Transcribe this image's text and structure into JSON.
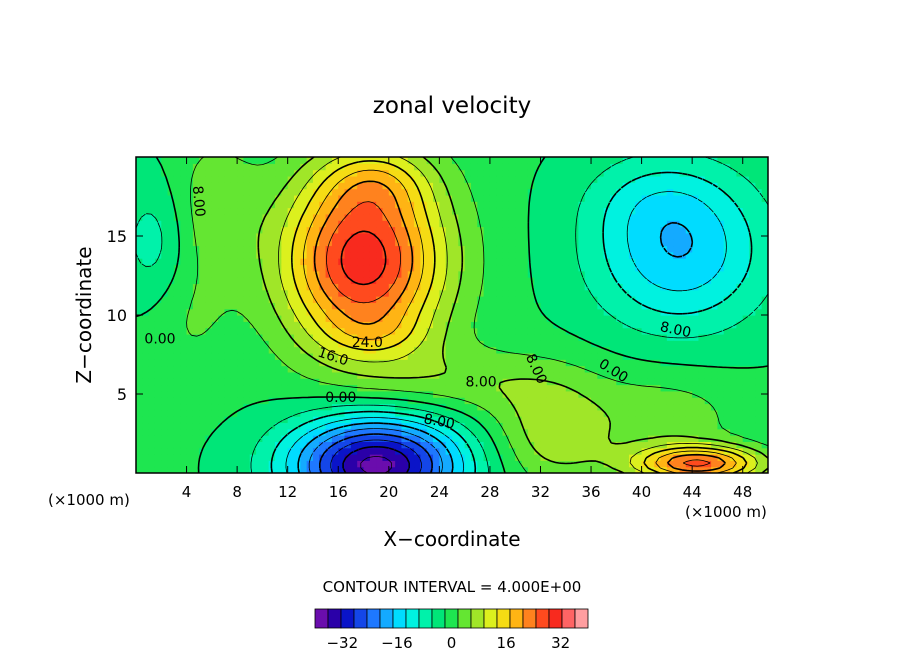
{
  "chart_data": {
    "type": "heatmap",
    "title": "zonal velocity",
    "xlabel": "X−coordinate",
    "ylabel": "Z−coordinate",
    "x_unit": "(×1000 m)",
    "y_unit": "(×1000 m)",
    "xlim": [
      0,
      50
    ],
    "ylim": [
      0,
      20
    ],
    "x_ticks": [
      4,
      8,
      12,
      16,
      20,
      24,
      28,
      32,
      36,
      40,
      44,
      48
    ],
    "y_ticks": [
      5,
      10,
      15
    ],
    "contour_interval_text": "CONTOUR INTERVAL = 4.000E+00",
    "contour_interval": 4,
    "color_levels": [
      -40,
      -36,
      -32,
      -28,
      -24,
      -20,
      -16,
      -12,
      -8,
      -4,
      0,
      4,
      8,
      12,
      16,
      20,
      24,
      28,
      32,
      36,
      40
    ],
    "colorbar_ticks": [
      -32,
      -16,
      0,
      16,
      32
    ],
    "contour_labels": [
      {
        "text": "8.00",
        "x": 5.0,
        "z": 17.2,
        "rotate": 85
      },
      {
        "text": "0.00",
        "x": 1.9,
        "z": 8.5,
        "rotate": 0
      },
      {
        "text": "24.0",
        "x": 18.3,
        "z": 8.3,
        "rotate": 0
      },
      {
        "text": "16.0",
        "x": 15.6,
        "z": 7.4,
        "rotate": 18
      },
      {
        "text": "8.00",
        "x": 27.3,
        "z": 5.8,
        "rotate": 0
      },
      {
        "text": "0.00",
        "x": 16.2,
        "z": 4.8,
        "rotate": 0
      },
      {
        "text": "8.00",
        "x": 24.0,
        "z": 3.3,
        "rotate": 10
      },
      {
        "text": "8.00",
        "x": 31.7,
        "z": 6.6,
        "rotate": 65
      },
      {
        "text": "0.00",
        "x": 37.8,
        "z": 6.5,
        "rotate": 32
      },
      {
        "text": "8.00",
        "x": 42.7,
        "z": 9.1,
        "rotate": 12
      }
    ],
    "field_features": [
      {
        "name": "upper jet",
        "x": 18,
        "z": 13.5,
        "peak": 34,
        "sx": 4.5,
        "sz": 4.0
      },
      {
        "name": "jet top",
        "x": 19,
        "z": 18.5,
        "peak": 8,
        "sx": 3.0,
        "sz": 1.5
      },
      {
        "name": "jet lower lobe",
        "x": 19,
        "z": 8.8,
        "peak": 4,
        "sx": 3.0,
        "sz": 1.0
      },
      {
        "name": "western ridge",
        "x": 6,
        "z": 17.0,
        "peak": 6,
        "sx": 2.5,
        "sz": 3.0
      },
      {
        "name": "surface core",
        "x": 19,
        "z": 0.5,
        "peak": -38,
        "sx": 4.8,
        "sz": 2.2
      },
      {
        "name": "upper right core",
        "x": 43,
        "z": 14.0,
        "peak": -16,
        "sx": 5.0,
        "sz": 3.5
      },
      {
        "name": "upper right core top",
        "x": 41,
        "z": 17.5,
        "peak": -4,
        "sx": 4.0,
        "sz": 2.0
      },
      {
        "name": "western weak low",
        "x": 1.5,
        "z": 14.5,
        "peak": -7,
        "sx": 2.0,
        "sz": 3.0
      },
      {
        "name": "surface jet",
        "x": 44.5,
        "z": 0.6,
        "peak": 27,
        "sx": 3.5,
        "sz": 0.8
      },
      {
        "name": "central surface band",
        "x": 33,
        "z": 2.5,
        "peak": 10,
        "sx": 3.5,
        "sz": 2.5
      },
      {
        "name": "right band",
        "x": 42,
        "z": 3.5,
        "peak": 6,
        "sx": 4.0,
        "sz": 2.0
      },
      {
        "name": "mid band",
        "x": 26,
        "z": 5.8,
        "peak": 6,
        "sx": 6.0,
        "sz": 1.5
      },
      {
        "name": "western band",
        "x": 4,
        "z": 10.0,
        "peak": 4,
        "sx": 2.5,
        "sz": 3.0
      }
    ]
  },
  "colors": {
    "palette": [
      "#6a0dad",
      "#2a00a8",
      "#0a14c8",
      "#1446e8",
      "#1e78ff",
      "#14aaff",
      "#00dcff",
      "#00f2e0",
      "#00f2aa",
      "#00e678",
      "#1ee650",
      "#64e632",
      "#a0e628",
      "#dcf01e",
      "#f5dc14",
      "#ffb414",
      "#ff821e",
      "#ff4a1e",
      "#f82a1e",
      "#ff6464",
      "#ff9ea0"
    ],
    "contour_line": "#000000"
  }
}
